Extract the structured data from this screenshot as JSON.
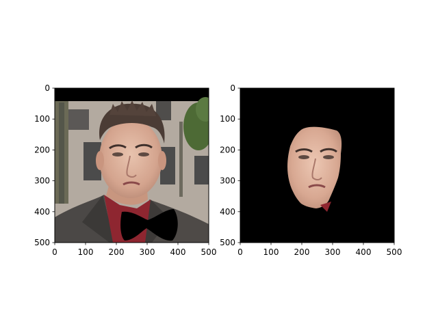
{
  "chart_data": [
    {
      "type": "image",
      "title": "",
      "xlabel": "",
      "ylabel": "",
      "xlim": [
        0,
        500
      ],
      "ylim": [
        500,
        0
      ],
      "y_axis_inverted": true,
      "xticks": [
        0,
        100,
        200,
        300,
        400,
        500
      ],
      "yticks": [
        0,
        100,
        200,
        300,
        400,
        500
      ],
      "xtick_labels": [
        "0",
        "100",
        "200",
        "300",
        "400",
        "500"
      ],
      "ytick_labels": [
        "0",
        "100",
        "200",
        "300",
        "400",
        "500"
      ],
      "content": "photo-face-with-bowtie-overlay",
      "letterbox_rows": [
        0,
        40
      ],
      "bowtie_center": [
        300,
        450
      ],
      "colors": {
        "background": "#000000",
        "building": "#b3aaa0",
        "window": "#4b4b4b",
        "tree": "#4d6a35",
        "suit": "#4b4846",
        "shirt": "#8e2630",
        "skin": "#e0b6a1",
        "hair": "#4b3c35",
        "bowtie": "#000000"
      }
    },
    {
      "type": "image",
      "title": "",
      "xlabel": "",
      "ylabel": "",
      "xlim": [
        0,
        500
      ],
      "ylim": [
        500,
        0
      ],
      "y_axis_inverted": true,
      "xticks": [
        0,
        100,
        200,
        300,
        400,
        500
      ],
      "yticks": [
        0,
        100,
        200,
        300,
        400,
        500
      ],
      "xtick_labels": [
        "0",
        "100",
        "200",
        "300",
        "400",
        "500"
      ],
      "ytick_labels": [
        "0",
        "100",
        "200",
        "300",
        "400",
        "500"
      ],
      "content": "segmented-face-on-black",
      "face_extent_x": [
        155,
        330
      ],
      "face_extent_y": [
        120,
        410
      ],
      "colors": {
        "background": "#000000",
        "skin": "#e3b9a4",
        "shirt": "#8e2630"
      }
    }
  ]
}
